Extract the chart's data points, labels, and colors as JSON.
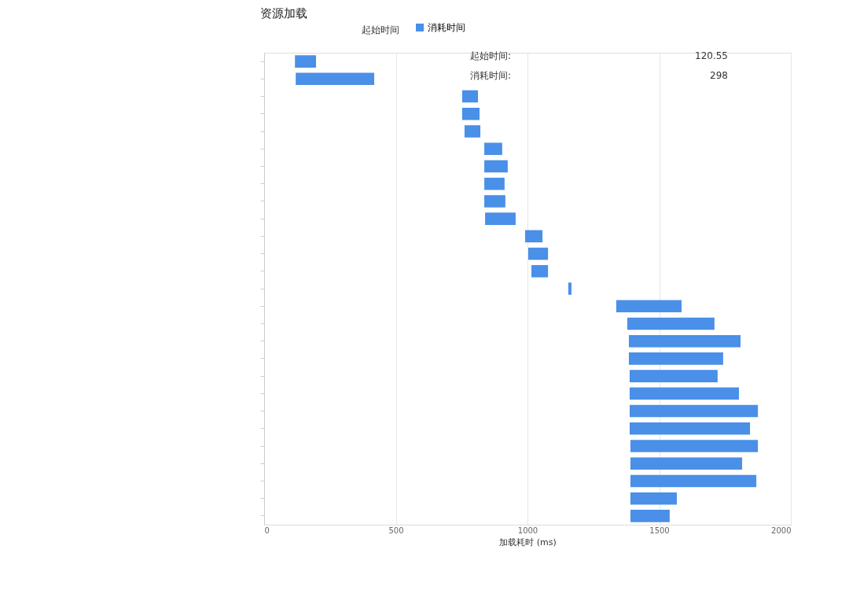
{
  "chart_data": {
    "type": "bar",
    "orientation": "horizontal",
    "title": "资源加载",
    "xlabel": "加载耗时 (ms)",
    "categories": [
      null,
      null,
      null,
      null,
      null,
      null,
      null,
      null,
      null,
      null,
      null,
      null,
      null,
      null,
      null,
      null,
      null,
      null,
      null,
      null,
      null,
      null,
      null,
      null,
      null,
      null,
      null
    ],
    "series": [
      {
        "name": "消耗时间",
        "color": "#4a8fe8",
        "values": [
          80,
          298,
          60,
          66,
          60,
          68,
          89,
          77,
          80,
          116,
          66,
          75,
          63,
          12,
          248,
          331,
          424,
          358,
          334,
          415,
          487,
          457,
          484,
          424,
          478,
          176,
          149
        ],
        "base": [
          117,
          120,
          752,
          752,
          761,
          836,
          836,
          836,
          836,
          839,
          991,
          1003,
          1015,
          1155,
          1337,
          1379,
          1385,
          1385,
          1388,
          1388,
          1388,
          1388,
          1391,
          1391,
          1391,
          1391,
          1391
        ]
      }
    ],
    "xlim": [
      0,
      2000
    ],
    "xticks": [
      0,
      500,
      1000,
      1500,
      2000
    ],
    "grid": "x",
    "legend": "top",
    "tick_labels": "x",
    "annotations": [
      "起始时间",
      "起始时间: 120.55",
      "消耗时间: 298"
    ]
  }
}
